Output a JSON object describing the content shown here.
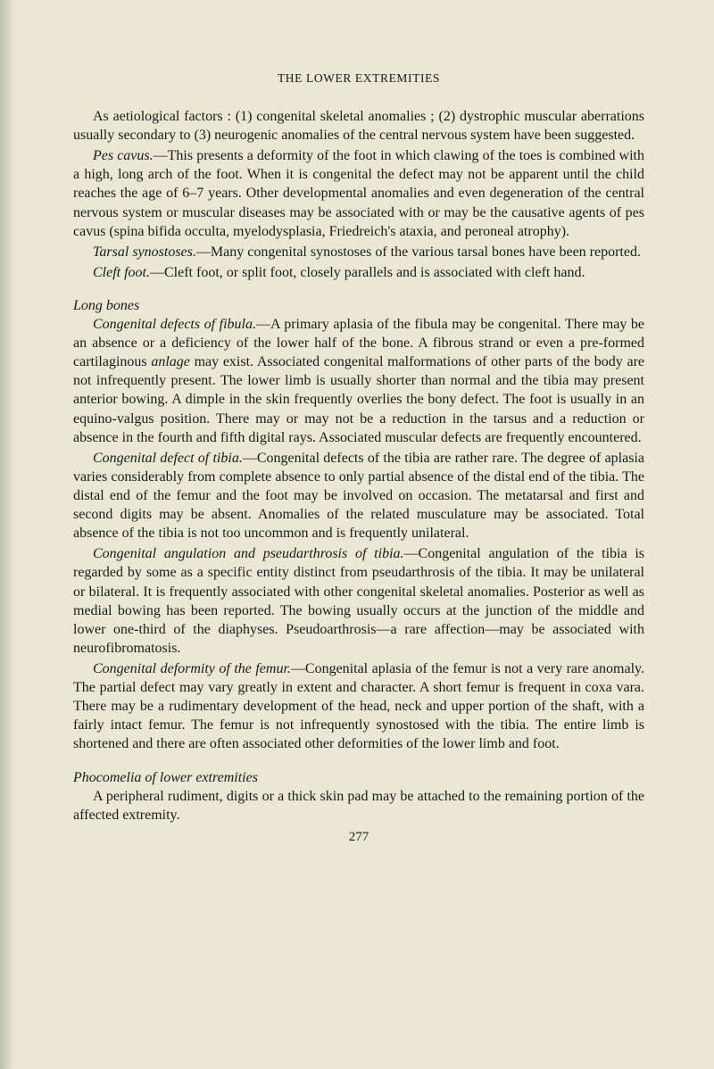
{
  "page": {
    "running_head": "THE LOWER EXTREMITIES",
    "number": "277"
  },
  "colors": {
    "background": "#eae7d4",
    "text": "#1a1a1a",
    "shadow": "rgba(0,0,0,0.18)"
  },
  "typography": {
    "body_family": "Times New Roman",
    "body_size_pt": 12,
    "running_head_size_pt": 10,
    "line_height": 1.32
  },
  "p": {
    "a1": "As aetiological factors : (1) congenital skeletal anomalies ; (2) dystrophic muscular aberrations usually secondary to (3) neurogenic anomalies of the central nervous system have been suggested.",
    "a2_i": "Pes cavus.",
    "a2": "—This presents a deformity of the foot in which clawing of the toes is combined with a high, long arch of the foot. When it is congenital the defect may not be apparent until the child reaches the age of 6–7 years. Other developmental anomalies and even degeneration of the central nervous system or muscular diseases may be associated with or may be the causative agents of pes cavus (spina bifida occulta, myelodysplasia, Friedreich's ataxia, and peroneal atrophy).",
    "a3_i": "Tarsal synostoses.",
    "a3": "—Many congenital synostoses of the various tarsal bones have been reported.",
    "a4_i": "Cleft foot.",
    "a4": "—Cleft foot, or split foot, closely parallels and is associated with cleft hand.",
    "h1": "Long bones",
    "b1_i": "Congenital defects of fibula.",
    "b1": "—A primary aplasia of the fibula may be congenital. There may be an absence or a deficiency of the lower half of the bone. A fibrous strand or even a pre-formed cartilaginous ",
    "b1_i2": "anlage",
    "b1b": " may exist. Associated congenital malformations of other parts of the body are not infrequently present. The lower limb is usually shorter than normal and the tibia may present anterior bowing. A dimple in the skin frequently overlies the bony defect. The foot is usually in an equino-valgus position. There may or may not be a reduction in the tarsus and a reduction or absence in the fourth and fifth digital rays. Associated muscular defects are frequently encountered.",
    "b2_i": "Congenital defect of tibia.",
    "b2": "—Congenital defects of the tibia are rather rare. The degree of aplasia varies considerably from complete absence to only partial absence of the distal end of the tibia. The distal end of the femur and the foot may be involved on occasion. The metatarsal and first and second digits may be absent. Anomalies of the related musculature may be associated. Total absence of the tibia is not too uncommon and is frequently unilateral.",
    "b3_i": "Congenital angulation and pseudarthrosis of tibia.",
    "b3": "—Congenital angulation of the tibia is regarded by some as a specific entity distinct from pseudarthrosis of the tibia. It may be unilateral or bilateral. It is frequently associated with other congenital skeletal anomalies. Posterior as well as medial bowing has been reported. The bowing usually occurs at the junction of the middle and lower one-third of the diaphyses. Pseudoarthrosis—a rare affection—may be associated with neurofibromatosis.",
    "b4_i": "Congenital deformity of the femur.",
    "b4": "—Congenital aplasia of the femur is not a very rare anomaly. The partial defect may vary greatly in extent and character. A short femur is frequent in coxa vara. There may be a rudimentary development of the head, neck and upper portion of the shaft, with a fairly intact femur. The femur is not infrequently synostosed with the tibia. The entire limb is shortened and there are often associated other deformities of the lower limb and foot.",
    "h2": "Phocomelia of lower extremities",
    "c1": "A peripheral rudiment, digits or a thick skin pad may be attached to the remaining portion of the affected extremity."
  }
}
